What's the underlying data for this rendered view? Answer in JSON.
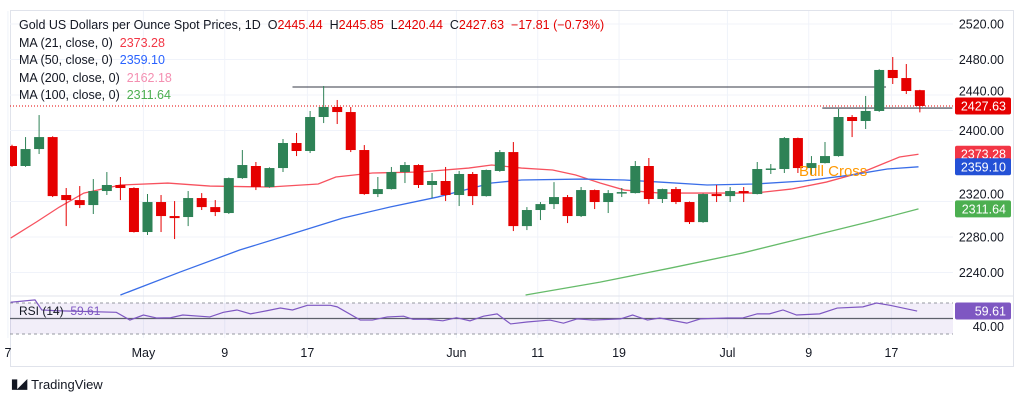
{
  "header": {
    "symbol": "Gold US Dollars per Ounce Spot Prices, 1D",
    "o_label": "O",
    "o": "2445.44",
    "h_label": "H",
    "h": "2445.85",
    "l_label": "L",
    "l": "2420.44",
    "c_label": "C",
    "c": "2427.63",
    "change": "−17.81 (−0.73%)"
  },
  "legend": [
    {
      "label": "MA (21, close, 0)",
      "value": "2373.28",
      "color": "#f23645"
    },
    {
      "label": "MA (50, close, 0)",
      "value": "2359.10",
      "color": "#2962ff"
    },
    {
      "label": "MA (200, close, 0)",
      "value": "2162.18",
      "color": "#f48fb1"
    },
    {
      "label": "MA (100, close, 0)",
      "value": "2311.64",
      "color": "#4caf50"
    }
  ],
  "rsi_legend": {
    "label": "RSI (14)",
    "value": "59.61"
  },
  "branding": {
    "name": "TradingView"
  },
  "chart_data": {
    "type": "candlestick",
    "title": "Gold US Dollars per Ounce Spot Prices, 1D",
    "ylim": [
      2212,
      2530
    ],
    "y_ticks": [
      "2520.00",
      "2480.00",
      "2440.00",
      "2400.00",
      "2320.00",
      "2280.00",
      "2240.00"
    ],
    "y_tick_values": [
      2520,
      2480,
      2440,
      2400,
      2320,
      2280,
      2240
    ],
    "x_ticks": [
      {
        "label": "7",
        "index": -0.3
      },
      {
        "label": "May",
        "index": 9.7
      },
      {
        "label": "9",
        "index": 15.7
      },
      {
        "label": "17",
        "index": 21.8
      },
      {
        "label": "Jun",
        "index": 32.8
      },
      {
        "label": "11",
        "index": 38.8
      },
      {
        "label": "19",
        "index": 44.8
      },
      {
        "label": "Jul",
        "index": 52.8
      },
      {
        "label": "9",
        "index": 58.8
      },
      {
        "label": "17",
        "index": 64.9
      }
    ],
    "colors": {
      "up": "#2e8256",
      "down": "#e50000"
    },
    "ohlc": [
      [
        2382.5,
        2384.0,
        2359.0,
        2360.0
      ],
      [
        2360.0,
        2392.6,
        2359.0,
        2379.1
      ],
      [
        2379.1,
        2417.4,
        2373.5,
        2392.6
      ],
      [
        2392.6,
        2393.5,
        2325.0,
        2326.1
      ],
      [
        2327.3,
        2335.2,
        2292.3,
        2321.6
      ],
      [
        2321.6,
        2337.4,
        2312.6,
        2316.0
      ],
      [
        2316.0,
        2345.3,
        2305.9,
        2331.8
      ],
      [
        2331.8,
        2353.2,
        2327.3,
        2338.6
      ],
      [
        2338.6,
        2347.6,
        2321.6,
        2335.2
      ],
      [
        2335.2,
        2336.0,
        2285.0,
        2285.6
      ],
      [
        2285.6,
        2328.4,
        2282.2,
        2319.4
      ],
      [
        2319.4,
        2327.3,
        2285.6,
        2303.6
      ],
      [
        2303.6,
        2320.5,
        2277.7,
        2301.3
      ],
      [
        2302.5,
        2331.8,
        2292.3,
        2323.9
      ],
      [
        2323.9,
        2329.5,
        2310.4,
        2313.7
      ],
      [
        2313.7,
        2321.6,
        2303.6,
        2308.1
      ],
      [
        2307.0,
        2347.0,
        2306.0,
        2346.4
      ],
      [
        2346.4,
        2378.0,
        2345.5,
        2361.1
      ],
      [
        2360.0,
        2364.5,
        2332.9,
        2336.3
      ],
      [
        2336.3,
        2358.5,
        2335.5,
        2357.7
      ],
      [
        2357.7,
        2390.4,
        2353.2,
        2385.9
      ],
      [
        2385.9,
        2397.2,
        2371.2,
        2376.9
      ],
      [
        2376.9,
        2422.0,
        2374.6,
        2415.2
      ],
      [
        2415.2,
        2450.1,
        2408.4,
        2426.5
      ],
      [
        2426.5,
        2434.4,
        2407.3,
        2420.8
      ],
      [
        2420.8,
        2426.5,
        2375.7,
        2378.0
      ],
      [
        2378.0,
        2383.6,
        2327.5,
        2328.4
      ],
      [
        2328.4,
        2347.6,
        2325.0,
        2334.0
      ],
      [
        2334.0,
        2358.9,
        2333.5,
        2353.2
      ],
      [
        2353.2,
        2364.5,
        2340.8,
        2361.1
      ],
      [
        2361.1,
        2362.0,
        2335.2,
        2338.6
      ],
      [
        2338.6,
        2352.1,
        2323.9,
        2343.1
      ],
      [
        2343.1,
        2358.9,
        2320.5,
        2327.3
      ],
      [
        2327.3,
        2354.4,
        2314.9,
        2351.0
      ],
      [
        2351.0,
        2353.2,
        2316.0,
        2326.1
      ],
      [
        2326.1,
        2356.0,
        2325.5,
        2355.5
      ],
      [
        2354.4,
        2378.0,
        2353.5,
        2375.7
      ],
      [
        2375.7,
        2387.0,
        2286.7,
        2292.3
      ],
      [
        2292.3,
        2313.7,
        2287.8,
        2310.4
      ],
      [
        2310.4,
        2319.4,
        2299.1,
        2317.1
      ],
      [
        2317.1,
        2341.9,
        2311.5,
        2325.0
      ],
      [
        2325.0,
        2327.3,
        2295.7,
        2303.6
      ],
      [
        2303.6,
        2336.3,
        2302.5,
        2332.9
      ],
      [
        2332.9,
        2333.5,
        2311.5,
        2319.4
      ],
      [
        2319.4,
        2332.9,
        2307.0,
        2329.5
      ],
      [
        2329.5,
        2335.2,
        2325.0,
        2330.6
      ],
      [
        2329.5,
        2365.6,
        2329.0,
        2360.0
      ],
      [
        2360.0,
        2369.0,
        2317.1,
        2322.8
      ],
      [
        2322.8,
        2334.5,
        2318.3,
        2334.0
      ],
      [
        2334.0,
        2336.3,
        2317.1,
        2319.4
      ],
      [
        2319.4,
        2320.0,
        2294.6,
        2296.8
      ],
      [
        2296.8,
        2329.0,
        2296.0,
        2328.4
      ],
      [
        2328.4,
        2338.6,
        2319.4,
        2326.1
      ],
      [
        2326.1,
        2336.3,
        2319.4,
        2331.8
      ],
      [
        2331.8,
        2336.3,
        2319.4,
        2329.5
      ],
      [
        2328.4,
        2364.5,
        2328.0,
        2356.6
      ],
      [
        2356.6,
        2362.2,
        2351.0,
        2357.2
      ],
      [
        2356.6,
        2392.6,
        2352.1,
        2391.5
      ],
      [
        2391.5,
        2392.0,
        2352.1,
        2357.7
      ],
      [
        2357.7,
        2371.2,
        2349.8,
        2363.3
      ],
      [
        2363.3,
        2387.0,
        2362.8,
        2371.2
      ],
      [
        2371.2,
        2424.2,
        2370.5,
        2415.2
      ],
      [
        2415.2,
        2417.4,
        2392.6,
        2410.7
      ],
      [
        2410.7,
        2438.9,
        2401.7,
        2422.0
      ],
      [
        2422.0,
        2469.0,
        2421.0,
        2468.2
      ],
      [
        2468.2,
        2482.8,
        2452.4,
        2459.1
      ],
      [
        2459.1,
        2474.9,
        2441.1,
        2444.5
      ],
      [
        2445.44,
        2445.85,
        2420.44,
        2427.63
      ]
    ],
    "moving_averages": [
      {
        "name": "MA 21",
        "color": "#f7525f",
        "points": [
          [
            -0.1,
            2278.8
          ],
          [
            1.8,
            2296.9
          ],
          [
            3.5,
            2313.8
          ],
          [
            5.3,
            2329.5
          ],
          [
            8.0,
            2338.6
          ],
          [
            11.5,
            2340.8
          ],
          [
            14.6,
            2337.4
          ],
          [
            19.0,
            2336.3
          ],
          [
            22.6,
            2339.7
          ],
          [
            23.9,
            2347.6
          ],
          [
            26.6,
            2352.1
          ],
          [
            30.1,
            2353.2
          ],
          [
            33.7,
            2357.7
          ],
          [
            35.4,
            2361.1
          ],
          [
            37.6,
            2357.7
          ],
          [
            39.9,
            2355.5
          ],
          [
            41.6,
            2349.8
          ],
          [
            43.4,
            2340.8
          ],
          [
            45.2,
            2332.9
          ],
          [
            47.8,
            2329.5
          ],
          [
            52.2,
            2329.5
          ],
          [
            54.8,
            2329.5
          ],
          [
            57.5,
            2334.0
          ],
          [
            60.1,
            2341.9
          ],
          [
            62.8,
            2353.2
          ],
          [
            64.6,
            2364.5
          ],
          [
            65.5,
            2370.1
          ],
          [
            66.9,
            2373.28
          ]
        ]
      },
      {
        "name": "MA 50",
        "color": "#3a6ee8",
        "points": [
          [
            8.0,
            2214.6
          ],
          [
            12.4,
            2240.5
          ],
          [
            16.8,
            2265.3
          ],
          [
            20.4,
            2282.2
          ],
          [
            24.4,
            2301.3
          ],
          [
            27.9,
            2313.8
          ],
          [
            31.4,
            2325.0
          ],
          [
            35.4,
            2340.8
          ],
          [
            37.6,
            2344.2
          ],
          [
            42.1,
            2345.3
          ],
          [
            45.2,
            2344.2
          ],
          [
            47.8,
            2341.9
          ],
          [
            51.3,
            2338.6
          ],
          [
            54.8,
            2339.7
          ],
          [
            58.4,
            2343.1
          ],
          [
            61.9,
            2349.8
          ],
          [
            64.6,
            2356.6
          ],
          [
            66.9,
            2359.1
          ]
        ]
      },
      {
        "name": "MA 100",
        "color": "#66bb6a",
        "points": [
          [
            37.9,
            2214.6
          ],
          [
            43.4,
            2229.2
          ],
          [
            48.6,
            2245.0
          ],
          [
            53.9,
            2261.9
          ],
          [
            59.3,
            2282.2
          ],
          [
            63.2,
            2296.9
          ],
          [
            66.9,
            2311.64
          ]
        ]
      }
    ],
    "horizontal_lines": [
      {
        "name": "resistance",
        "price": 2449.0,
        "from": 20.7,
        "to": 64.5
      },
      {
        "name": "support",
        "price": 2425.3,
        "from": 59.8,
        "to": 69.4
      }
    ],
    "last_price": 2427.63,
    "annotation": {
      "text": "Bull Cross",
      "index": 60.6,
      "price": 2354.5,
      "color": "#ff9800"
    },
    "price_badges": [
      {
        "value": "2427.63",
        "price": 2427.63,
        "color": "#e50000"
      },
      {
        "value": "2373.28",
        "price": 2373.28,
        "color": "#f23645"
      },
      {
        "value": "2359.10",
        "price": 2359.1,
        "color": "#2451d6"
      },
      {
        "value": "2311.64",
        "price": 2311.64,
        "color": "#4caf50"
      }
    ],
    "rsi": {
      "period": 14,
      "upper": 70,
      "middle": 50,
      "lower": 30,
      "tick": "40.00",
      "tick_value": 40,
      "color": "#7e57c2",
      "last": "59.61",
      "points": [
        [
          -0.1,
          71
        ],
        [
          1.7,
          74
        ],
        [
          2.2,
          61
        ],
        [
          3.3,
          60
        ],
        [
          7.7,
          58
        ],
        [
          8.7,
          48
        ],
        [
          9.7,
          54.5
        ],
        [
          10.7,
          50.6
        ],
        [
          11.7,
          51
        ],
        [
          12.6,
          54.5
        ],
        [
          14.6,
          52
        ],
        [
          15.6,
          58
        ],
        [
          16.6,
          61
        ],
        [
          17.6,
          56
        ],
        [
          18.8,
          60
        ],
        [
          19.8,
          63.5
        ],
        [
          20.7,
          61
        ],
        [
          21.8,
          67
        ],
        [
          23.5,
          67
        ],
        [
          24.0,
          65
        ],
        [
          25.7,
          48
        ],
        [
          26.6,
          48
        ],
        [
          27.7,
          52
        ],
        [
          28.9,
          53
        ],
        [
          29.6,
          49
        ],
        [
          30.6,
          49
        ],
        [
          31.8,
          47
        ],
        [
          32.8,
          51
        ],
        [
          33.8,
          47
        ],
        [
          34.8,
          53
        ],
        [
          35.8,
          56
        ],
        [
          36.8,
          43
        ],
        [
          38.0,
          45.5
        ],
        [
          39.7,
          48
        ],
        [
          40.7,
          44
        ],
        [
          41.7,
          49.5
        ],
        [
          42.9,
          48
        ],
        [
          44.9,
          49.5
        ],
        [
          45.8,
          54.5
        ],
        [
          46.9,
          48
        ],
        [
          47.8,
          50.6
        ],
        [
          49.8,
          44
        ],
        [
          50.8,
          49.5
        ],
        [
          52.8,
          50.6
        ],
        [
          53.9,
          50.6
        ],
        [
          55.0,
          56
        ],
        [
          55.9,
          56
        ],
        [
          56.9,
          61
        ],
        [
          57.9,
          54.5
        ],
        [
          59.6,
          56
        ],
        [
          60.9,
          63.5
        ],
        [
          62.8,
          65
        ],
        [
          63.8,
          70
        ],
        [
          64.8,
          67
        ],
        [
          66.8,
          59.61
        ]
      ]
    }
  }
}
